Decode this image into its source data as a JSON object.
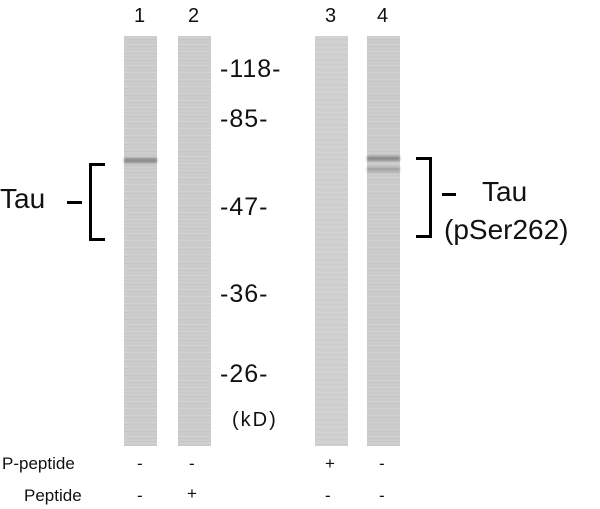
{
  "lanes": [
    {
      "number": "1",
      "p_peptide": "-",
      "peptide": "-"
    },
    {
      "number": "2",
      "p_peptide": "-",
      "peptide": "+"
    },
    {
      "number": "3",
      "p_peptide": "+",
      "peptide": "-"
    },
    {
      "number": "4",
      "p_peptide": "-",
      "peptide": "-"
    }
  ],
  "markers": [
    "-118-",
    "-85-",
    "-47-",
    "-36-",
    "-26-"
  ],
  "unit": "(kD)",
  "left_label": "Tau",
  "right_label": {
    "line1": "Tau",
    "line2": "(pSer262)"
  },
  "row_labels": {
    "p_peptide": "P-peptide",
    "peptide": "Peptide"
  }
}
